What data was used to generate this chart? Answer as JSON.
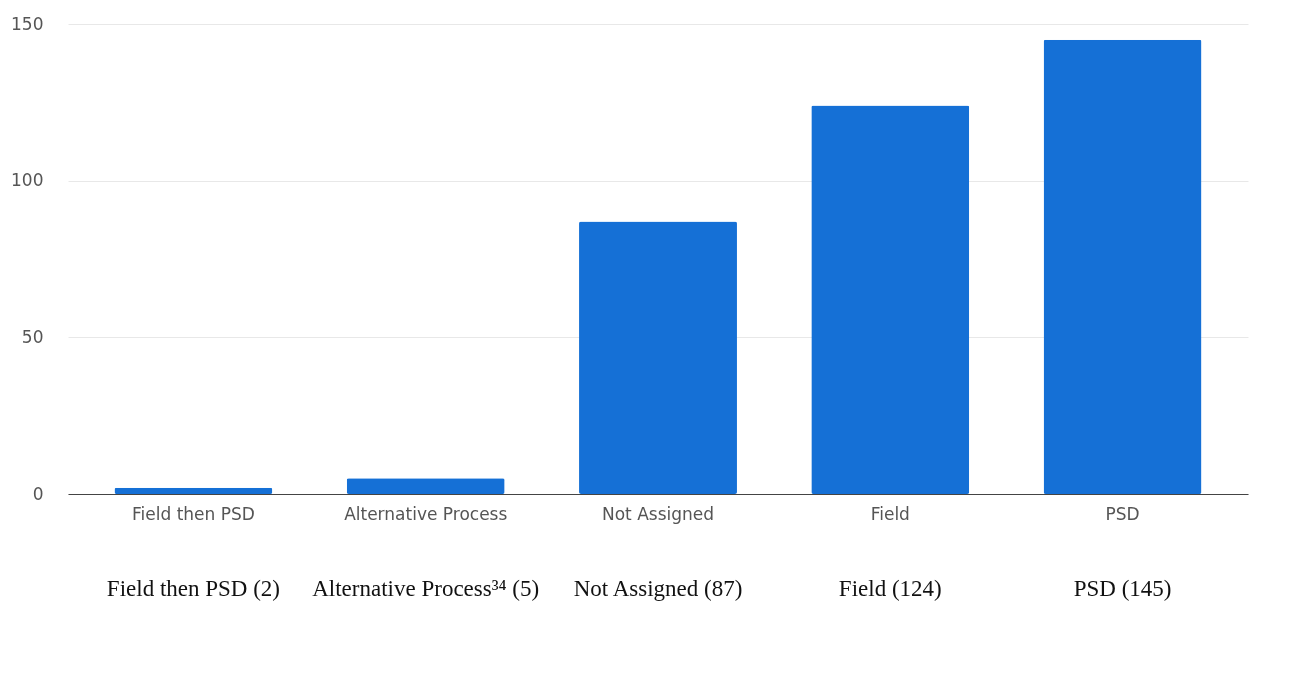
{
  "chart_data": {
    "type": "bar",
    "categories": [
      "Field then PSD",
      "Alternative Process",
      "Not Assigned",
      "Field",
      "PSD"
    ],
    "values": [
      2,
      5,
      87,
      124,
      145
    ],
    "value_labels": [
      "Field then PSD (2)",
      "Alternative Process³⁴ (5)",
      "Not Assigned (87)",
      "Field (124)",
      "PSD (145)"
    ],
    "color": "#1570d6",
    "ylim": [
      0,
      150
    ],
    "yticks": [
      0,
      50,
      100,
      150
    ],
    "grid": "y"
  }
}
